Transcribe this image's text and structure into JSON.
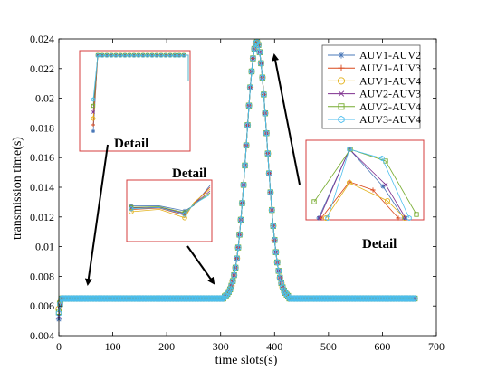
{
  "chart_data": {
    "type": "line",
    "title": "",
    "xlabel": "time slots(s)",
    "ylabel": "transmission time(s)",
    "xlim": [
      0,
      700
    ],
    "ylim": [
      0.004,
      0.024
    ],
    "x_ticks": [
      0,
      100,
      200,
      300,
      400,
      500,
      600,
      700
    ],
    "y_ticks": [
      0.004,
      0.006,
      0.008,
      0.01,
      0.012,
      0.014,
      0.016,
      0.018,
      0.02,
      0.022,
      0.024
    ],
    "y_tick_labels": [
      "0.004",
      "0.006",
      "0.008",
      "0.01",
      "0.012",
      "0.014",
      "0.016",
      "0.018",
      "0.02",
      "0.022",
      "0.024"
    ],
    "grid": false,
    "legend_position": "top-right",
    "series": [
      {
        "name": "AUV1-AUV2",
        "color": "#4a78b8",
        "marker": "asterisk",
        "start": 0.0051
      },
      {
        "name": "AUV1-AUV3",
        "color": "#d9481c",
        "marker": "plus",
        "start": 0.0054
      },
      {
        "name": "AUV1-AUV4",
        "color": "#e3b21c",
        "marker": "circle",
        "start": 0.0058
      },
      {
        "name": "AUV2-AUV3",
        "color": "#7e2f8e",
        "marker": "cross",
        "start": 0.0053
      },
      {
        "name": "AUV2-AUV4",
        "color": "#77ac30",
        "marker": "square",
        "start": 0.0056
      },
      {
        "name": "AUV3-AUV4",
        "color": "#4dbeee",
        "marker": "hexagon",
        "start": 0.0055
      }
    ],
    "profile": {
      "baseline": 0.0065,
      "peak": 0.0238,
      "rise_start": 306,
      "peak_x": 367,
      "fall_end": 425,
      "x_end": 660
    },
    "annotations": [
      "Detail",
      "Detail",
      "Detail"
    ]
  }
}
